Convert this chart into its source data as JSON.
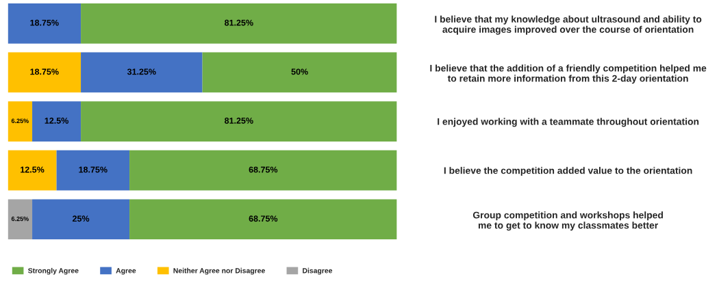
{
  "chart_data": {
    "type": "bar",
    "orientation": "horizontal",
    "stacked": true,
    "categories": [
      "I believe that my knowledge about ultrasound and ability to\nacquire images improved over the course of orientation",
      "I believe that the addition of a friendly competition helped me\nto retain more information from this 2-day orientation",
      "I enjoyed working with a teammate throughout orientation",
      "I believe the competition added value to the orientation",
      "Group competition and workshops helped\nme to get to know my classmates better"
    ],
    "series": [
      {
        "name": "Disagree",
        "color": "#a5a5a5",
        "values": [
          0,
          0,
          0,
          0,
          6.25
        ],
        "value_labels": [
          null,
          null,
          null,
          null,
          "6.25%"
        ]
      },
      {
        "name": "Neither Agree nor Disagree",
        "color": "#ffc000",
        "values": [
          0,
          18.75,
          6.25,
          12.5,
          0
        ],
        "value_labels": [
          null,
          "18.75%",
          "6.25%",
          "12.5%",
          null
        ]
      },
      {
        "name": "Agree",
        "color": "#4472c4",
        "values": [
          18.75,
          31.25,
          12.5,
          18.75,
          25
        ],
        "value_labels": [
          "18.75%",
          "31.25%",
          "12.5%",
          "18.75%",
          "25%"
        ]
      },
      {
        "name": "Strongly Agree",
        "color": "#70ad47",
        "values": [
          81.25,
          50,
          81.25,
          68.75,
          68.75
        ],
        "value_labels": [
          "81.25%",
          "50%",
          "81.25%",
          "68.75%",
          "68.75%"
        ]
      }
    ],
    "xlim": [
      0,
      100
    ],
    "tick_labels": "y",
    "grid": false,
    "legend": "bottom left"
  }
}
